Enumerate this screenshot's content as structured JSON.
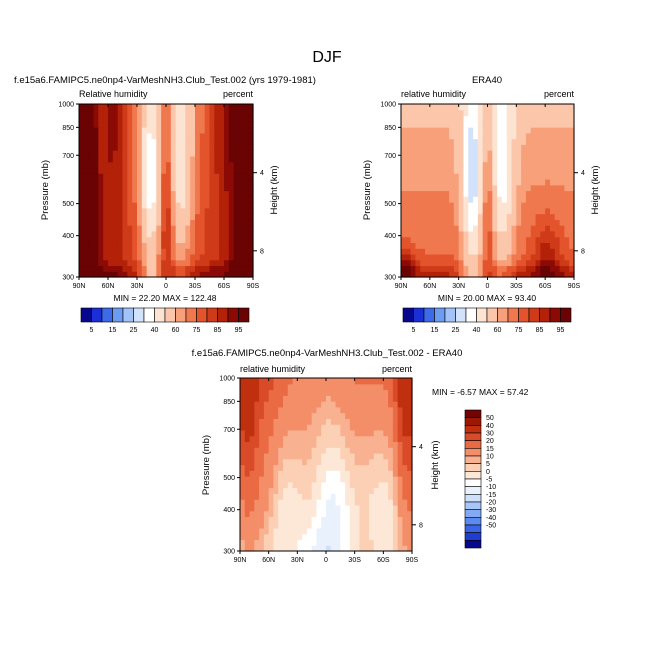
{
  "figure_title": "DJF",
  "palettes": {
    "absolute": [
      "#08088e",
      "#1a2fd6",
      "#3c6ae8",
      "#6c9cf2",
      "#a2c2f8",
      "#d2e2fb",
      "#ffffff",
      "#fde4d2",
      "#fbc6aa",
      "#f7a07a",
      "#f0784e",
      "#e3542c",
      "#cf3a18",
      "#b32108",
      "#8c0a05",
      "#6a0303"
    ],
    "difference": [
      "#08088e",
      "#1f3ecf",
      "#3b64e6",
      "#5b8bef",
      "#82aaf5",
      "#a9c6f8",
      "#cfe0fb",
      "#e9f1fd",
      "#ffffff",
      "#fde8d8",
      "#fbd0b4",
      "#f9b291",
      "#f48e68",
      "#ea6a44",
      "#d94a28",
      "#c0300f",
      "#9b1805",
      "#720404"
    ]
  },
  "chart_data": [
    {
      "type": "heatmap",
      "title": "f.e15a6.FAMIPC5.ne0np4-VarMeshNH3.Club_Test.002 (yrs 1979-1981)",
      "left_label": "Relative humidity",
      "right_label": "percent",
      "xlabel": "",
      "ylabel": "Pressure (mb)",
      "y2label": "Height (km)",
      "x_ticks": [
        "90N",
        "60N",
        "30N",
        "0",
        "30S",
        "60S",
        "90S"
      ],
      "y_ticks": [
        "300",
        "400",
        "500",
        "700",
        "850",
        "1000"
      ],
      "y_tick_values": [
        300,
        400,
        500,
        700,
        850,
        1000
      ],
      "y2_ticks": [
        "8",
        "4"
      ],
      "ylim": [
        1000,
        300
      ],
      "y_scale": "log",
      "stats": "MIN = 22.20   MAX = 122.48",
      "palette": "absolute",
      "field": "model"
    },
    {
      "type": "heatmap",
      "title": "ERA40",
      "left_label": "relative humidity",
      "right_label": "percent",
      "xlabel": "",
      "ylabel": "Pressure (mb)",
      "y2label": "Height (km)",
      "x_ticks": [
        "90N",
        "60N",
        "30N",
        "0",
        "30S",
        "60S",
        "90S"
      ],
      "y_ticks": [
        "300",
        "400",
        "500",
        "700",
        "850",
        "1000"
      ],
      "y_tick_values": [
        300,
        400,
        500,
        700,
        850,
        1000
      ],
      "y2_ticks": [
        "8",
        "4"
      ],
      "ylim": [
        1000,
        300
      ],
      "y_scale": "log",
      "stats": "MIN = 20.00   MAX = 93.40",
      "palette": "absolute",
      "field": "era"
    },
    {
      "type": "heatmap",
      "title": "f.e15a6.FAMIPC5.ne0np4-VarMeshNH3.Club_Test.002 - ERA40",
      "left_label": "relative humidity",
      "right_label": "percent",
      "xlabel": "",
      "ylabel": "Pressure (mb)",
      "y2label": "Height (km)",
      "x_ticks": [
        "90N",
        "60N",
        "30N",
        "0",
        "30S",
        "60S",
        "90S"
      ],
      "y_ticks": [
        "300",
        "400",
        "500",
        "700",
        "850",
        "1000"
      ],
      "y_tick_values": [
        300,
        400,
        500,
        700,
        850,
        1000
      ],
      "y2_ticks": [
        "8",
        "4"
      ],
      "ylim": [
        1000,
        300
      ],
      "y_scale": "log",
      "stats": "MIN = -6.57   MAX = 57.42",
      "palette": "difference",
      "field": "diff"
    }
  ],
  "colorbars": {
    "absolute_labels": [
      "5",
      "15",
      "25",
      "40",
      "60",
      "75",
      "85",
      "95"
    ],
    "difference_labels": [
      "50",
      "40",
      "30",
      "20",
      "15",
      "10",
      "5",
      "0",
      "-5",
      "-10",
      "-15",
      "-20",
      "-30",
      "-40",
      "-50"
    ]
  }
}
